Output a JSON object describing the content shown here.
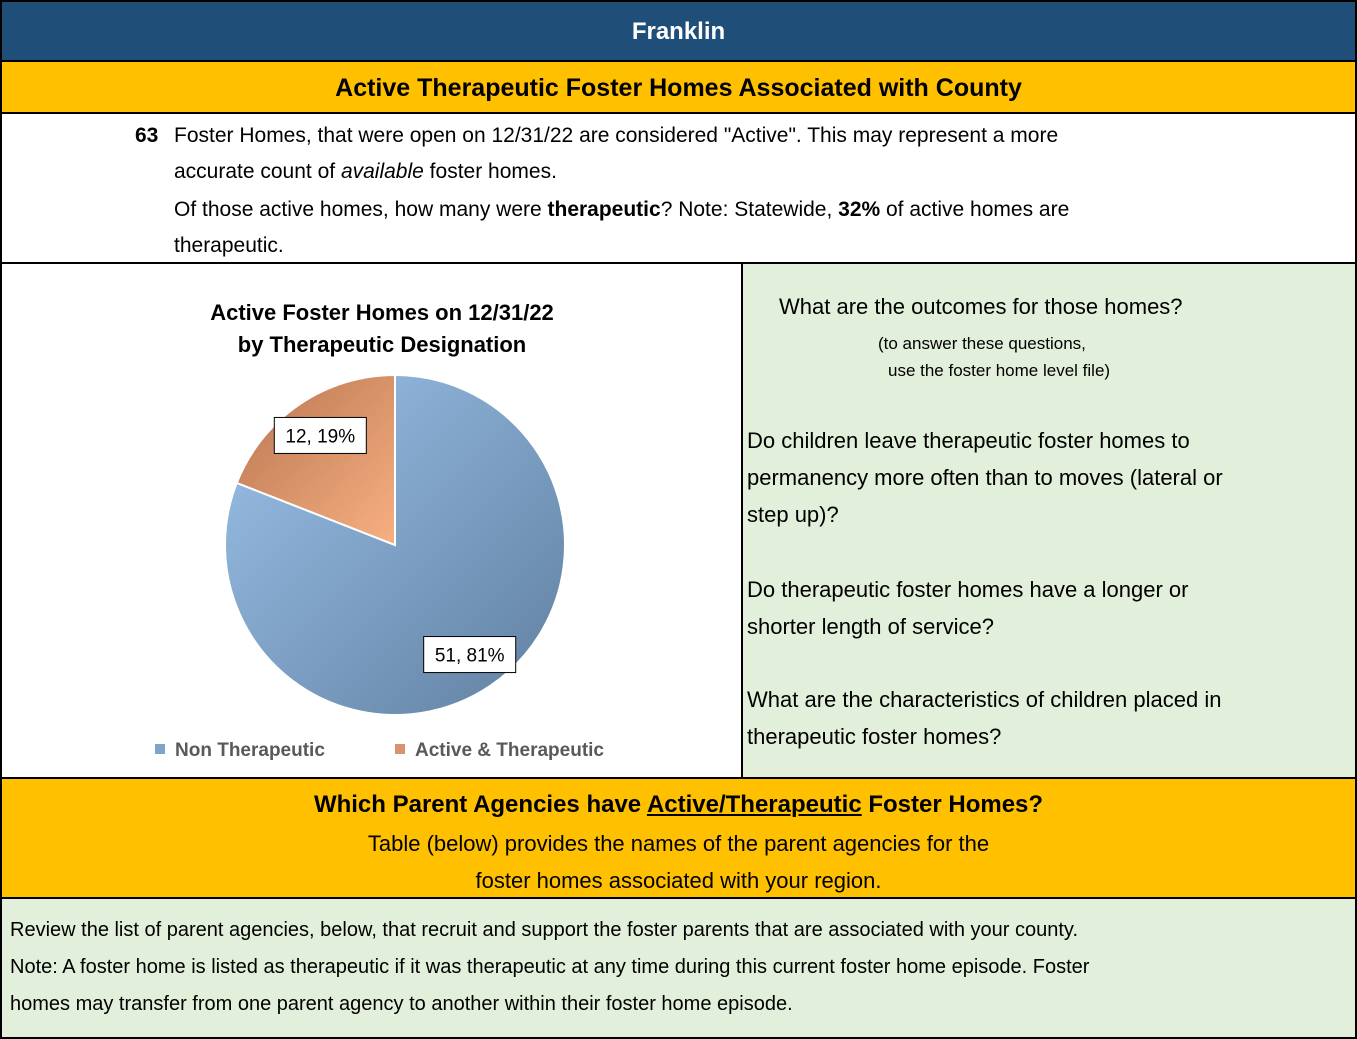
{
  "header": {
    "county": "Franklin",
    "section_title": "Active Therapeutic Foster Homes Associated with County"
  },
  "intro": {
    "count": "63",
    "line1": "Foster Homes, that were open on 12/31/22 are considered \"Active\".  This may represent a more",
    "line2": [
      "accurate count of ",
      "available",
      "  foster homes."
    ],
    "line3": [
      "Of those active homes, how many were ",
      "therapeutic",
      "?  Note:  Statewide, ",
      "32%",
      " of active homes are"
    ],
    "line4": "therapeutic."
  },
  "chart_data": {
    "type": "pie",
    "title": [
      "Active Foster Homes on 12/31/22",
      "by Therapeutic Designation"
    ],
    "categories": [
      "Non Therapeutic",
      "Active & Therapeutic"
    ],
    "values": [
      51,
      12
    ],
    "value_labels": [
      "51, 81%",
      "12, 19%"
    ],
    "colors": [
      "#7fa3ca",
      "#d89470"
    ],
    "legend": "bottom"
  },
  "outcomes": {
    "question": "What are the outcomes for those homes?",
    "hint": [
      "(to answer these questions,",
      "use the foster home level file)"
    ],
    "items": [
      [
        "Do children leave therapeutic foster homes to",
        "permanency more often than to moves (lateral or",
        "step up)?"
      ],
      [
        "Do therapeutic foster homes have a longer or",
        "shorter length of service?"
      ],
      [
        "What are the characteristics of children placed in",
        "therapeutic foster homes?"
      ]
    ]
  },
  "agencies": {
    "heading": [
      "Which Parent Agencies have ",
      "Active/Therapeutic",
      " Foster Homes?"
    ],
    "lines": [
      "Table (below) provides the names of the parent agencies for the",
      "foster homes associated with your region."
    ]
  },
  "review": [
    "Review the list of parent agencies, below, that recruit and support the foster parents that are associated with your county.",
    "Note:  A foster home is listed as therapeutic if it was therapeutic at any time during this current foster home episode.  Foster",
    "homes may transfer from one parent agency to another within their foster home episode."
  ]
}
